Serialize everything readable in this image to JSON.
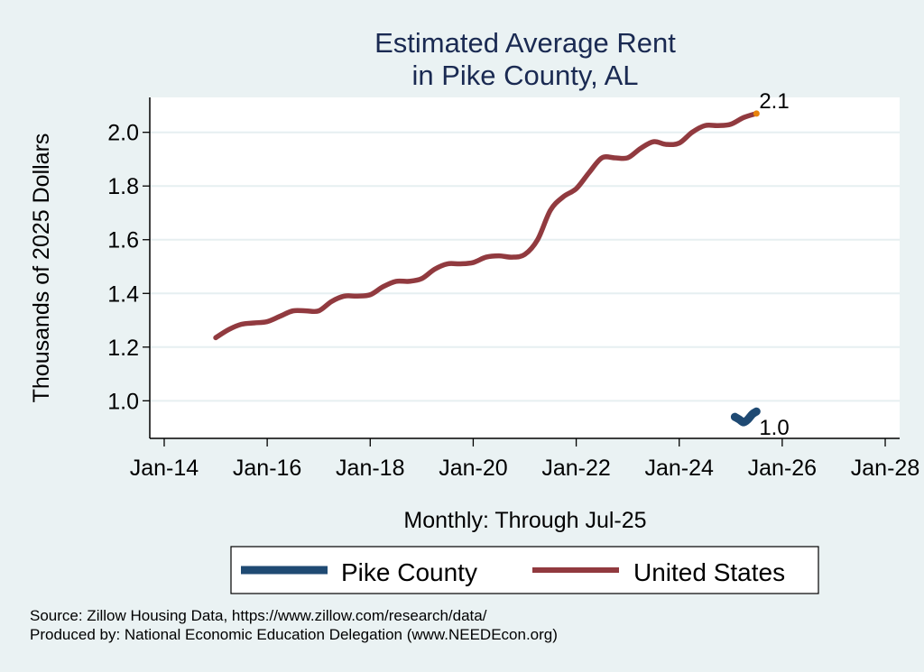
{
  "chart_data": {
    "type": "line",
    "title": [
      "Estimated Average Rent",
      "in Pike County, AL"
    ],
    "xlabel": "Monthly: Through Jul-25",
    "ylabel": "Thousands of 2025 Dollars",
    "x_ticks": [
      {
        "label": "Jan-14",
        "year": 2014
      },
      {
        "label": "Jan-16",
        "year": 2016
      },
      {
        "label": "Jan-18",
        "year": 2018
      },
      {
        "label": "Jan-20",
        "year": 2020
      },
      {
        "label": "Jan-22",
        "year": 2022
      },
      {
        "label": "Jan-24",
        "year": 2024
      },
      {
        "label": "Jan-26",
        "year": 2026
      },
      {
        "label": "Jan-28",
        "year": 2028
      }
    ],
    "y_ticks": [
      {
        "label": "1.0",
        "value": 1.0
      },
      {
        "label": "1.2",
        "value": 1.2
      },
      {
        "label": "1.4",
        "value": 1.4
      },
      {
        "label": "1.6",
        "value": 1.6
      },
      {
        "label": "1.8",
        "value": 1.8
      },
      {
        "label": "2.0",
        "value": 2.0
      }
    ],
    "xlim": [
      2013.72,
      2028.28
    ],
    "ylim": [
      0.86,
      2.13
    ],
    "grid": "horizontal",
    "series": [
      {
        "name": "Pike County",
        "color": "#1f4a73",
        "end_label": "1.0",
        "x": [
          2025.08,
          2025.17,
          2025.25,
          2025.33,
          2025.42,
          2025.5
        ],
        "values": [
          0.94,
          0.93,
          0.92,
          0.93,
          0.95,
          0.96
        ]
      },
      {
        "name": "United States",
        "color": "#913a3f",
        "end_label": "2.1",
        "end_marker_color": "#e8820c",
        "x": [
          2015.0,
          2015.25,
          2015.5,
          2015.75,
          2016.0,
          2016.25,
          2016.5,
          2016.75,
          2017.0,
          2017.25,
          2017.5,
          2017.75,
          2018.0,
          2018.25,
          2018.5,
          2018.75,
          2019.0,
          2019.25,
          2019.5,
          2019.75,
          2020.0,
          2020.25,
          2020.5,
          2020.75,
          2021.0,
          2021.25,
          2021.5,
          2021.75,
          2022.0,
          2022.25,
          2022.5,
          2022.75,
          2023.0,
          2023.25,
          2023.5,
          2023.75,
          2024.0,
          2024.25,
          2024.5,
          2024.75,
          2025.0,
          2025.25,
          2025.5
        ],
        "values": [
          1.235,
          1.265,
          1.285,
          1.29,
          1.295,
          1.315,
          1.335,
          1.335,
          1.335,
          1.37,
          1.39,
          1.39,
          1.395,
          1.425,
          1.445,
          1.445,
          1.455,
          1.49,
          1.51,
          1.51,
          1.515,
          1.535,
          1.54,
          1.535,
          1.545,
          1.6,
          1.71,
          1.76,
          1.79,
          1.85,
          1.905,
          1.905,
          1.905,
          1.94,
          1.965,
          1.955,
          1.96,
          2.0,
          2.025,
          2.025,
          2.03,
          2.055,
          2.07
        ]
      }
    ],
    "legend": {
      "position": "bottom",
      "entries": [
        "Pike County",
        "United States"
      ]
    }
  },
  "footer": {
    "source": "Source: Zillow Housing Data, https://www.zillow.com/research/data/",
    "produced_by": "Produced by: National Economic Education Delegation (www.NEEDEcon.org)"
  }
}
